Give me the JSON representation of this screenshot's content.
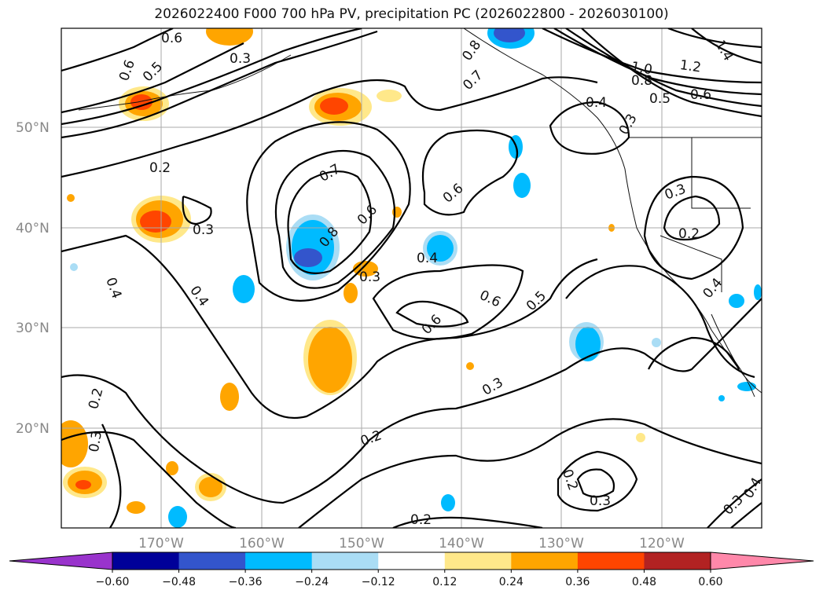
{
  "title": "2026022400 F000 700 hPa PV, precipitation PC (2026022800 - 2026030100)",
  "lat_labels": [
    "50°N",
    "40°N",
    "30°N",
    "20°N"
  ],
  "lon_labels": [
    "170°W",
    "160°W",
    "150°W",
    "140°W",
    "130°W",
    "120°W"
  ],
  "colorbar": {
    "ticks": [
      "−0.60",
      "−0.48",
      "−0.36",
      "−0.24",
      "−0.12",
      "0.12",
      "0.24",
      "0.36",
      "0.48",
      "0.60"
    ],
    "colors": [
      "#9933cc",
      "#000099",
      "#3355cc",
      "#00bbff",
      "#aaddf5",
      "#ffffff",
      "#ffe88a",
      "#ffa500",
      "#ff4500",
      "#b22222",
      "#ff88aa"
    ]
  },
  "contour_labels": [
    "0.6",
    "0.5",
    "0.3",
    "0.6",
    "0.2",
    "0.3",
    "0.4",
    "0.4",
    "0.2",
    "0.3",
    "0.7",
    "0.6",
    "0.8",
    "0.3",
    "0.6",
    "0.4",
    "0.8",
    "0.7",
    "0.6",
    "0.5",
    "0.6",
    "0.3",
    "0.2",
    "0.2",
    "1.0",
    "0.8",
    "1.2",
    "1.4",
    "0.5",
    "0.6",
    "0.4",
    "0.3",
    "0.3",
    "0.2",
    "0.4",
    "0.2",
    "0.3",
    "0.3",
    "0.4"
  ]
}
